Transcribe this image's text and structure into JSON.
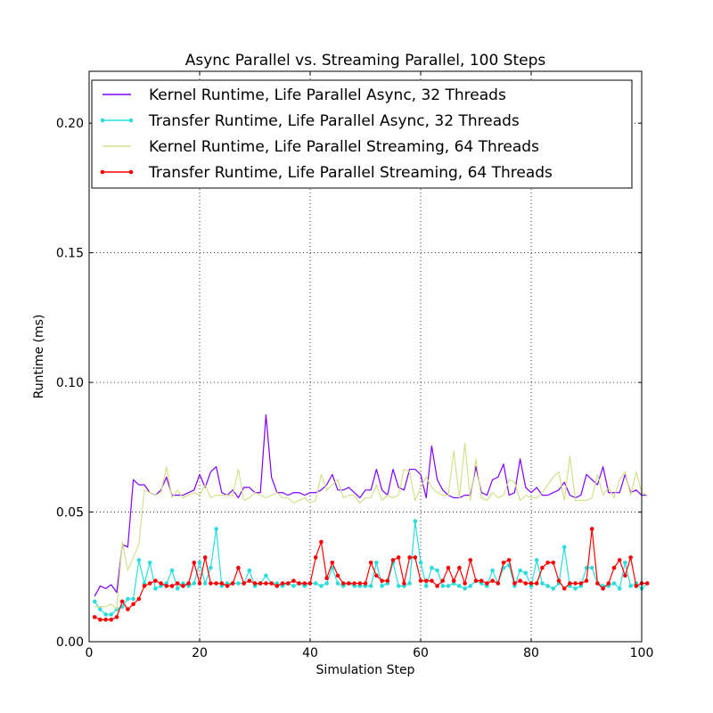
{
  "chart_data": {
    "type": "line",
    "title": "Async Parallel vs. Streaming Parallel, 100 Steps",
    "xlabel": "Simulation Step",
    "ylabel": "Runtime (ms)",
    "xlim": [
      0,
      100
    ],
    "ylim": [
      0,
      0.22
    ],
    "xticks": [
      0,
      20,
      40,
      60,
      80,
      100
    ],
    "xtick_labels": [
      "0",
      "20",
      "40",
      "60",
      "80",
      "100"
    ],
    "yticks": [
      0.0,
      0.05,
      0.1,
      0.15,
      0.2
    ],
    "ytick_labels": [
      "0.00",
      "0.05",
      "0.10",
      "0.15",
      "0.20"
    ],
    "grid": true,
    "legend_position": "top-left",
    "series": [
      {
        "name": "Kernel Runtime, Life Parallel Async, 32 Threads",
        "color": "#7f00ff",
        "marker": false,
        "values": [
          0.0175,
          0.0215,
          0.0205,
          0.022,
          0.019,
          0.0375,
          0.0365,
          0.0625,
          0.0605,
          0.0605,
          0.0575,
          0.0565,
          0.0585,
          0.0635,
          0.0565,
          0.0565,
          0.0565,
          0.0575,
          0.0585,
          0.0645,
          0.0595,
          0.0655,
          0.0675,
          0.0575,
          0.0565,
          0.0585,
          0.0555,
          0.0595,
          0.0595,
          0.0575,
          0.0575,
          0.0875,
          0.0635,
          0.0575,
          0.0575,
          0.0565,
          0.0575,
          0.0575,
          0.0565,
          0.0575,
          0.0575,
          0.0585,
          0.0605,
          0.0645,
          0.0585,
          0.0585,
          0.0595,
          0.0575,
          0.0555,
          0.0585,
          0.0585,
          0.0665,
          0.0585,
          0.0565,
          0.0665,
          0.0595,
          0.0585,
          0.0665,
          0.0665,
          0.0645,
          0.0555,
          0.0755,
          0.0625,
          0.0585,
          0.0565,
          0.0555,
          0.0555,
          0.0565,
          0.0565,
          0.0675,
          0.0575,
          0.0565,
          0.0625,
          0.0635,
          0.0685,
          0.0565,
          0.0575,
          0.0705,
          0.0595,
          0.0575,
          0.0595,
          0.0565,
          0.0565,
          0.0575,
          0.0585,
          0.0615,
          0.0565,
          0.0555,
          0.0565,
          0.0645,
          0.0625,
          0.0605,
          0.0675,
          0.0575,
          0.0575,
          0.0575,
          0.0645,
          0.0575,
          0.0585,
          0.0565,
          0.0565
        ]
      },
      {
        "name": "Transfer Runtime, Life Parallel Async, 32 Threads",
        "color": "#2adddd",
        "marker": true,
        "values": [
          0.0155,
          0.0125,
          0.0105,
          0.0105,
          0.0125,
          0.0135,
          0.0165,
          0.0165,
          0.0315,
          0.0225,
          0.0305,
          0.0205,
          0.0215,
          0.0225,
          0.0275,
          0.0205,
          0.0225,
          0.0215,
          0.0225,
          0.0305,
          0.0225,
          0.0285,
          0.0435,
          0.0215,
          0.0225,
          0.0225,
          0.0225,
          0.0225,
          0.0275,
          0.0215,
          0.0225,
          0.0255,
          0.0225,
          0.0225,
          0.0215,
          0.0225,
          0.0215,
          0.0225,
          0.0215,
          0.0225,
          0.0225,
          0.0215,
          0.0225,
          0.0285,
          0.0225,
          0.0215,
          0.0225,
          0.0215,
          0.0215,
          0.0215,
          0.0215,
          0.0305,
          0.0215,
          0.0225,
          0.0305,
          0.0215,
          0.0215,
          0.0225,
          0.0465,
          0.0305,
          0.0215,
          0.0285,
          0.0275,
          0.0215,
          0.0215,
          0.0225,
          0.0215,
          0.0205,
          0.0215,
          0.0235,
          0.0225,
          0.0215,
          0.0275,
          0.0225,
          0.0285,
          0.0295,
          0.0215,
          0.0275,
          0.0265,
          0.0215,
          0.0315,
          0.0225,
          0.0215,
          0.0205,
          0.0225,
          0.0365,
          0.0215,
          0.0205,
          0.0215,
          0.0285,
          0.0285,
          0.0225,
          0.0215,
          0.0215,
          0.0225,
          0.0205,
          0.0305,
          0.0215,
          0.0225,
          0.0205,
          0.0225
        ]
      },
      {
        "name": "Kernel Runtime, Life Parallel Streaming, 64 Threads",
        "color": "#d4e08c",
        "marker": false,
        "values": [
          0.0135,
          0.0135,
          0.0135,
          0.0145,
          0.0125,
          0.0385,
          0.0275,
          0.0325,
          0.0375,
          0.0585,
          0.0575,
          0.0565,
          0.0575,
          0.0675,
          0.0555,
          0.0585,
          0.0555,
          0.0565,
          0.0575,
          0.0565,
          0.0605,
          0.0555,
          0.0565,
          0.0565,
          0.0565,
          0.0565,
          0.0665,
          0.0545,
          0.0555,
          0.0575,
          0.0565,
          0.0555,
          0.0565,
          0.0575,
          0.0555,
          0.0555,
          0.0535,
          0.0545,
          0.0555,
          0.0535,
          0.0545,
          0.0645,
          0.0585,
          0.0605,
          0.0625,
          0.0555,
          0.0565,
          0.0565,
          0.0535,
          0.0555,
          0.0555,
          0.0605,
          0.0545,
          0.0565,
          0.0555,
          0.0565,
          0.0665,
          0.0655,
          0.0545,
          0.0595,
          0.0635,
          0.0595,
          0.0575,
          0.0565,
          0.0565,
          0.0735,
          0.0555,
          0.0765,
          0.0545,
          0.0705,
          0.0555,
          0.0545,
          0.0575,
          0.0555,
          0.0565,
          0.0625,
          0.0615,
          0.0545,
          0.0565,
          0.0555,
          0.0555,
          0.0575,
          0.0605,
          0.0635,
          0.0655,
          0.0545,
          0.0715,
          0.0545,
          0.0545,
          0.0545,
          0.0555,
          0.0645,
          0.0565,
          0.0595,
          0.0555,
          0.0625,
          0.0655,
          0.0565,
          0.0655,
          0.0575,
          0.0565
        ]
      },
      {
        "name": "Transfer Runtime, Life Parallel Streaming, 64 Threads",
        "color": "#ff0000",
        "marker": true,
        "values": [
          0.0095,
          0.0085,
          0.0085,
          0.0085,
          0.0095,
          0.0155,
          0.0125,
          0.0145,
          0.0165,
          0.0215,
          0.0225,
          0.0235,
          0.0225,
          0.0215,
          0.0215,
          0.0225,
          0.0215,
          0.0225,
          0.0305,
          0.0225,
          0.0325,
          0.0225,
          0.0225,
          0.0225,
          0.0215,
          0.0225,
          0.0285,
          0.0225,
          0.0235,
          0.0225,
          0.0225,
          0.0225,
          0.0225,
          0.0215,
          0.0225,
          0.0225,
          0.0235,
          0.0225,
          0.0225,
          0.0225,
          0.0325,
          0.0385,
          0.0245,
          0.0305,
          0.0255,
          0.0225,
          0.0225,
          0.0225,
          0.0225,
          0.0225,
          0.0305,
          0.0255,
          0.0235,
          0.0235,
          0.0315,
          0.0325,
          0.0225,
          0.0325,
          0.0325,
          0.0235,
          0.0235,
          0.0235,
          0.0215,
          0.0235,
          0.0285,
          0.0235,
          0.0285,
          0.0225,
          0.0315,
          0.0235,
          0.0235,
          0.0225,
          0.0235,
          0.0225,
          0.0305,
          0.0315,
          0.0225,
          0.0235,
          0.0225,
          0.0225,
          0.0225,
          0.0285,
          0.0305,
          0.0305,
          0.0235,
          0.0205,
          0.0225,
          0.0225,
          0.0225,
          0.0235,
          0.0435,
          0.0225,
          0.0205,
          0.0225,
          0.0285,
          0.0315,
          0.0255,
          0.0325,
          0.0215,
          0.0225,
          0.0225
        ]
      }
    ]
  }
}
